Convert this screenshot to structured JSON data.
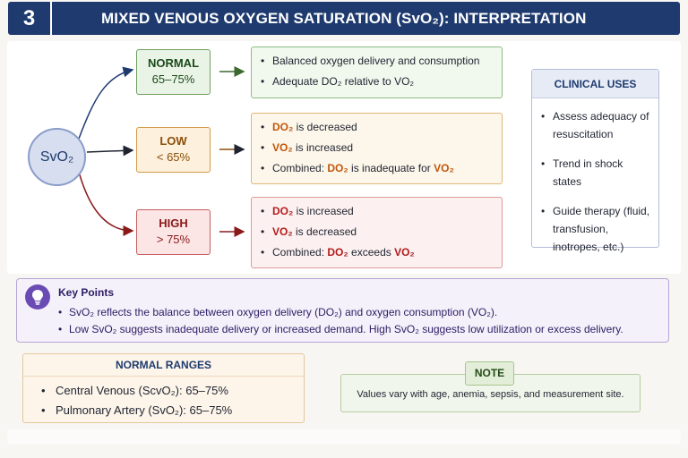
{
  "header": {
    "number": "3",
    "title": "MIXED VENOUS OXYGEN SATURATION (SvO₂): INTERPRETATION"
  },
  "center_node": {
    "label": "SvO₂"
  },
  "states": {
    "normal": {
      "name": "NORMAL",
      "range": "65–75%",
      "color": "#6e9f62"
    },
    "low": {
      "name": "LOW",
      "range": "< 65%",
      "color": "#d39a48"
    },
    "high": {
      "name": "HIGH",
      "range": "> 75%",
      "color": "#c75f5f"
    }
  },
  "descriptions": {
    "normal": {
      "item1": "Balanced oxygen delivery and consumption",
      "item2_pre": "Adequate DO₂ relative to VO₂"
    },
    "low": {
      "do2": "DO₂",
      "vo2": "VO₂",
      "item1_rest": " is decreased",
      "item2_rest": " is increased",
      "item3_pre": "Combined: ",
      "item3_mid": " is inadequate for "
    },
    "high": {
      "do2": "DO₂",
      "vo2": "VO₂",
      "item1_rest": " is increased",
      "item2_rest": " is decreased",
      "item3_pre": "Combined: ",
      "item3_mid": " exceeds "
    }
  },
  "clinical_uses": {
    "title": "CLINICAL USES",
    "items": [
      "Assess adequacy of resuscitation",
      "Trend in shock states",
      "Guide therapy (fluid, transfusion, inotropes, etc.)"
    ]
  },
  "key_points": {
    "title": "Key Points",
    "items": [
      "SvO₂ reflects the balance between oxygen delivery (DO₂) and oxygen consumption (VO₂).",
      "Low SvO₂ suggests inadequate delivery or increased demand. High SvO₂ suggests low utilization or excess delivery."
    ],
    "icon": "lightbulb-icon"
  },
  "normal_ranges": {
    "title": "NORMAL RANGES",
    "items": [
      "Central Venous (ScvO₂):  65–75%",
      "Pulmonary Artery (SvO₂):  65–75%"
    ]
  },
  "note": {
    "title": "NOTE",
    "text": "Values vary with age, anemia, sepsis, and measurement site."
  }
}
